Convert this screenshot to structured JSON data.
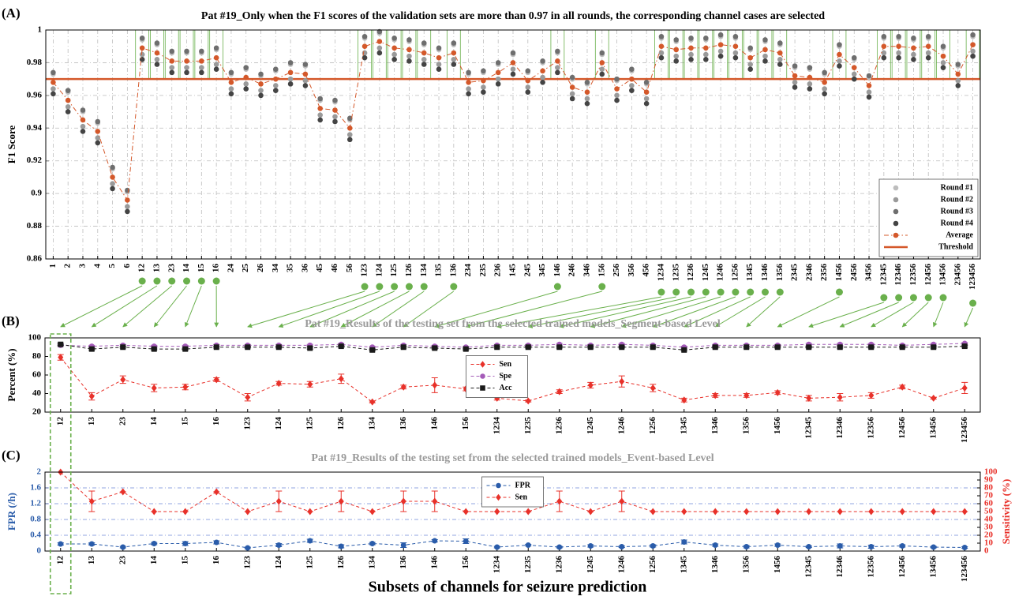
{
  "chart_data": [
    {
      "type": "line",
      "panel": "(A)",
      "title": "Pat #19_Only when the F1 scores of the validation sets are more than 0.97 in all rounds, the corresponding channel cases are selected",
      "title_color": "#000000",
      "ylabel": "F1 Score",
      "categories": [
        "1",
        "2",
        "3",
        "4",
        "5",
        "6",
        "12",
        "13",
        "23",
        "14",
        "15",
        "16",
        "24",
        "25",
        "26",
        "34",
        "35",
        "36",
        "45",
        "46",
        "56",
        "123",
        "124",
        "125",
        "126",
        "134",
        "135",
        "136",
        "234",
        "235",
        "236",
        "145",
        "245",
        "345",
        "146",
        "246",
        "346",
        "156",
        "256",
        "356",
        "456",
        "1234",
        "1235",
        "1236",
        "1245",
        "1246",
        "1256",
        "1345",
        "1346",
        "1356",
        "2345",
        "2346",
        "2356",
        "1456",
        "2456",
        "3456",
        "12345",
        "12346",
        "12356",
        "12456",
        "13456",
        "23456",
        "123456"
      ],
      "series": [
        {
          "name": "Round #1",
          "color": "#bdbdbd",
          "marker": "circle",
          "line_style": "none",
          "values": [
            0.973,
            0.962,
            0.95,
            0.943,
            0.915,
            0.901,
            0.994,
            0.991,
            0.986,
            0.986,
            0.986,
            0.988,
            0.973,
            0.976,
            0.972,
            0.975,
            0.979,
            0.978,
            0.957,
            0.956,
            0.945,
            0.995,
            0.998,
            0.994,
            0.993,
            0.991,
            0.988,
            0.991,
            0.973,
            0.974,
            0.979,
            0.985,
            0.974,
            0.98,
            0.986,
            0.97,
            0.967,
            0.985,
            0.969,
            0.975,
            0.967,
            0.995,
            0.993,
            0.994,
            0.994,
            0.996,
            0.995,
            0.988,
            0.993,
            0.991,
            0.977,
            0.976,
            0.973,
            0.99,
            0.982,
            0.971,
            0.995,
            0.995,
            0.994,
            0.995,
            0.989,
            0.978,
            0.996
          ]
        },
        {
          "name": "Round #2",
          "color": "#9a9a9a",
          "marker": "circle",
          "line_style": "none",
          "values": [
            0.964,
            0.953,
            0.941,
            0.934,
            0.906,
            0.892,
            0.985,
            0.982,
            0.977,
            0.977,
            0.977,
            0.979,
            0.964,
            0.967,
            0.963,
            0.966,
            0.97,
            0.969,
            0.948,
            0.947,
            0.936,
            0.986,
            0.989,
            0.985,
            0.984,
            0.982,
            0.979,
            0.982,
            0.964,
            0.965,
            0.97,
            0.976,
            0.965,
            0.971,
            0.977,
            0.961,
            0.958,
            0.976,
            0.96,
            0.966,
            0.958,
            0.986,
            0.984,
            0.985,
            0.985,
            0.987,
            0.986,
            0.979,
            0.984,
            0.982,
            0.968,
            0.967,
            0.964,
            0.981,
            0.973,
            0.962,
            0.986,
            0.986,
            0.985,
            0.986,
            0.98,
            0.969,
            0.987
          ]
        },
        {
          "name": "Round #3",
          "color": "#6e6e6e",
          "marker": "circle",
          "line_style": "none",
          "values": [
            0.974,
            0.963,
            0.951,
            0.944,
            0.916,
            0.902,
            0.995,
            0.992,
            0.987,
            0.987,
            0.987,
            0.989,
            0.974,
            0.977,
            0.973,
            0.976,
            0.98,
            0.979,
            0.958,
            0.957,
            0.946,
            0.996,
            0.999,
            0.995,
            0.994,
            0.992,
            0.989,
            0.992,
            0.974,
            0.975,
            0.98,
            0.986,
            0.975,
            0.981,
            0.987,
            0.971,
            0.968,
            0.986,
            0.97,
            0.976,
            0.968,
            0.996,
            0.994,
            0.995,
            0.995,
            0.997,
            0.996,
            0.989,
            0.994,
            0.992,
            0.978,
            0.977,
            0.974,
            0.991,
            0.983,
            0.972,
            0.996,
            0.996,
            0.995,
            0.996,
            0.99,
            0.979,
            0.997
          ]
        },
        {
          "name": "Round #4",
          "color": "#444444",
          "marker": "circle",
          "line_style": "none",
          "values": [
            0.961,
            0.95,
            0.938,
            0.931,
            0.903,
            0.889,
            0.982,
            0.979,
            0.974,
            0.974,
            0.974,
            0.976,
            0.961,
            0.964,
            0.96,
            0.963,
            0.967,
            0.966,
            0.945,
            0.944,
            0.933,
            0.983,
            0.986,
            0.982,
            0.981,
            0.979,
            0.976,
            0.979,
            0.961,
            0.962,
            0.967,
            0.973,
            0.962,
            0.968,
            0.974,
            0.958,
            0.955,
            0.973,
            0.957,
            0.963,
            0.955,
            0.983,
            0.981,
            0.982,
            0.982,
            0.984,
            0.983,
            0.976,
            0.981,
            0.979,
            0.965,
            0.964,
            0.961,
            0.978,
            0.97,
            0.959,
            0.983,
            0.983,
            0.982,
            0.983,
            0.977,
            0.966,
            0.984
          ]
        },
        {
          "name": "Average",
          "color": "#d4582a",
          "marker": "circle",
          "line_style": "dashdot",
          "values": [
            0.968,
            0.957,
            0.945,
            0.938,
            0.91,
            0.896,
            0.989,
            0.986,
            0.981,
            0.981,
            0.981,
            0.983,
            0.968,
            0.971,
            0.967,
            0.97,
            0.974,
            0.973,
            0.952,
            0.951,
            0.94,
            0.99,
            0.993,
            0.989,
            0.988,
            0.986,
            0.983,
            0.986,
            0.968,
            0.969,
            0.974,
            0.98,
            0.969,
            0.975,
            0.981,
            0.965,
            0.962,
            0.98,
            0.964,
            0.97,
            0.962,
            0.99,
            0.988,
            0.989,
            0.989,
            0.991,
            0.99,
            0.983,
            0.988,
            0.986,
            0.972,
            0.971,
            0.968,
            0.985,
            0.977,
            0.966,
            0.99,
            0.99,
            0.989,
            0.99,
            0.984,
            0.973,
            0.991
          ]
        }
      ],
      "threshold": {
        "name": "Threshold",
        "value": 0.97,
        "color": "#d4582a"
      },
      "highlight": true,
      "highlight_color": "#6ab04c",
      "ylim": [
        0.86,
        1
      ],
      "yticks": [
        0.86,
        0.88,
        0.9,
        0.92,
        0.94,
        0.96,
        0.98,
        1
      ],
      "grid": "both",
      "legend": "lower right"
    },
    {
      "type": "line",
      "panel": "(B)",
      "title": "Pat #19_Results of the testing set from the selected trained models_Segment-based Level",
      "title_color": "#9a9a9a",
      "ylabel": "Percent (%)",
      "categories": [
        "12",
        "13",
        "23",
        "14",
        "15",
        "16",
        "123",
        "124",
        "125",
        "126",
        "134",
        "136",
        "146",
        "156",
        "1234",
        "1235",
        "1236",
        "1245",
        "1246",
        "1256",
        "1345",
        "1346",
        "1356",
        "1456",
        "12345",
        "12346",
        "12356",
        "12456",
        "13456",
        "123456"
      ],
      "series": [
        {
          "name": "Sen",
          "color": "#e8312a",
          "marker": "diamond",
          "line_style": "dashed",
          "values": [
            79,
            37,
            55,
            46,
            47,
            55,
            36,
            51,
            50,
            56,
            31,
            47,
            49,
            45,
            35,
            32,
            42,
            49,
            53,
            46,
            33,
            38,
            38,
            41,
            35,
            36,
            38,
            47,
            35,
            46
          ],
          "errors": [
            3,
            4,
            4,
            4,
            3,
            2,
            4,
            2,
            3,
            5,
            1,
            2,
            8,
            2,
            2,
            1,
            2,
            3,
            6,
            4,
            2,
            2,
            2,
            2,
            3,
            4,
            3,
            2,
            1,
            6
          ]
        },
        {
          "name": "Spe",
          "color": "#a45bb8",
          "marker": "circle",
          "line_style": "dashed",
          "values": [
            92,
            91,
            92,
            91,
            91,
            92,
            92,
            92,
            92,
            93,
            90,
            92,
            91,
            90,
            92,
            92,
            93,
            92,
            93,
            92,
            90,
            92,
            92,
            92,
            93,
            93,
            93,
            92,
            93,
            94
          ],
          "errors": [
            1,
            1,
            1,
            1,
            1,
            1,
            1,
            1,
            1,
            1,
            1,
            1,
            1,
            1,
            1,
            1,
            1,
            1,
            1,
            1,
            1,
            1,
            1,
            1,
            1,
            1,
            1,
            1,
            1,
            1
          ]
        },
        {
          "name": "Acc",
          "color": "#1a1a1a",
          "marker": "square",
          "line_style": "dashed",
          "values": [
            93,
            88,
            90,
            88,
            88,
            90,
            90,
            90,
            89,
            91,
            87,
            90,
            89,
            88,
            90,
            90,
            90,
            90,
            90,
            90,
            87,
            90,
            90,
            90,
            90,
            90,
            90,
            90,
            90,
            91
          ],
          "errors": [
            1,
            1,
            1,
            1,
            1,
            1,
            1,
            1,
            1,
            1,
            1,
            1,
            1,
            1,
            1,
            1,
            1,
            1,
            1,
            1,
            1,
            1,
            1,
            1,
            1,
            1,
            1,
            1,
            1,
            1
          ]
        }
      ],
      "ylim": [
        20,
        100
      ],
      "yticks": [
        20,
        40,
        60,
        80,
        100
      ],
      "grid": "none",
      "legend": "center"
    },
    {
      "type": "line",
      "panel": "(C)",
      "title": "Pat #19_Results of the testing set from the selected trained models_Event-based Level",
      "title_color": "#9a9a9a",
      "ylabel": "FPR (/h)",
      "y2label": "Sensitivity (%)",
      "xlabel": "Subsets of channels for seizure prediction",
      "categories": [
        "12",
        "13",
        "23",
        "14",
        "15",
        "16",
        "123",
        "124",
        "125",
        "126",
        "134",
        "136",
        "146",
        "156",
        "1234",
        "1235",
        "1236",
        "1245",
        "1246",
        "1256",
        "1345",
        "1346",
        "1356",
        "1456",
        "12345",
        "12346",
        "12356",
        "12456",
        "13456",
        "123456"
      ],
      "series": [
        {
          "name": "FPR",
          "color": "#2a5caa",
          "marker": "circle",
          "line_style": "dashed",
          "values": [
            0.18,
            0.18,
            0.1,
            0.19,
            0.19,
            0.22,
            0.08,
            0.15,
            0.26,
            0.12,
            0.19,
            0.15,
            0.26,
            0.25,
            0.1,
            0.15,
            0.1,
            0.13,
            0.11,
            0.13,
            0.23,
            0.15,
            0.11,
            0.15,
            0.11,
            0.13,
            0.11,
            0.13,
            0.1,
            0.09
          ],
          "errors": [
            0.03,
            0.03,
            0.02,
            0.03,
            0.05,
            0.04,
            0.02,
            0.04,
            0.04,
            0.04,
            0.03,
            0.06,
            0.03,
            0.06,
            0.02,
            0.02,
            0.02,
            0.03,
            0.02,
            0.03,
            0.05,
            0.03,
            0.03,
            0.03,
            0.02,
            0.05,
            0.04,
            0.03,
            0.02,
            0.02
          ]
        },
        {
          "name": "Sen",
          "color": "#e8312a",
          "marker": "diamond",
          "line_style": "dashed",
          "axis": "y2",
          "values": [
            100,
            63,
            75,
            50,
            50,
            75,
            50,
            63,
            50,
            63,
            50,
            63,
            63,
            50,
            50,
            50,
            63,
            50,
            63,
            50,
            50,
            50,
            50,
            50,
            50,
            50,
            50,
            50,
            50,
            50
          ],
          "errors": [
            0,
            13,
            0,
            0,
            0,
            0,
            0,
            13,
            0,
            13,
            0,
            13,
            13,
            0,
            0,
            0,
            13,
            0,
            13,
            0,
            0,
            0,
            0,
            0,
            0,
            0,
            0,
            0,
            0,
            0
          ]
        }
      ],
      "ylim": [
        0,
        2
      ],
      "yticks": [
        0,
        0.4,
        0.8,
        1.2,
        1.6,
        2
      ],
      "y2lim": [
        0,
        100
      ],
      "y2ticks": [
        0,
        10,
        20,
        30,
        40,
        50,
        60,
        70,
        80,
        90,
        100
      ],
      "grid": "y",
      "grid_color": "#6d86d6",
      "legend": "upper center"
    }
  ]
}
